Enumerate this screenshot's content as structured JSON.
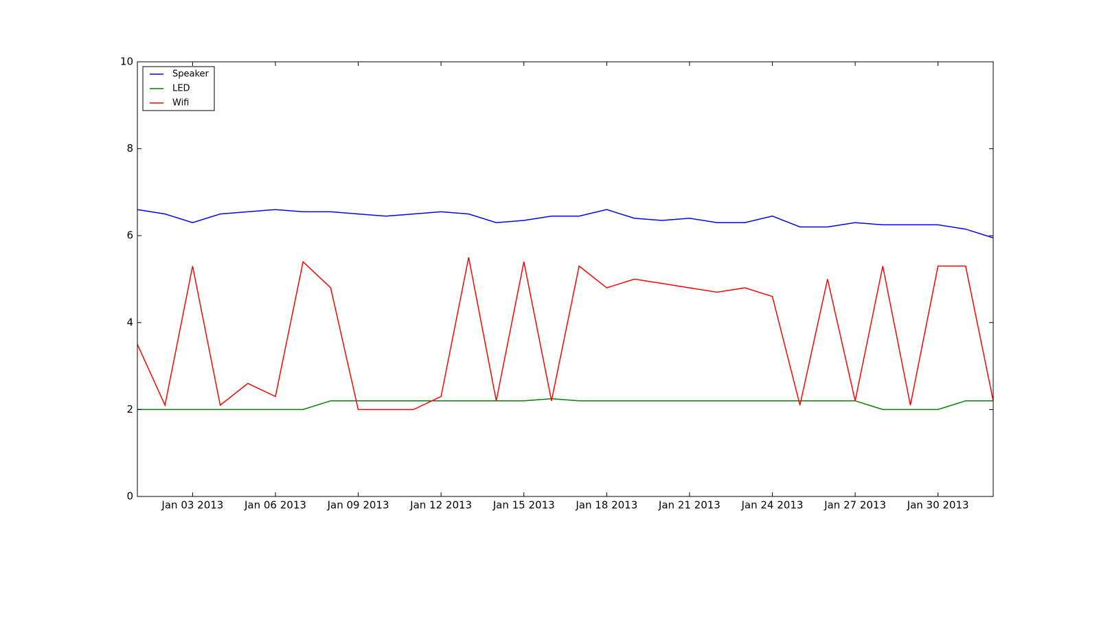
{
  "chart_data": {
    "type": "line",
    "x": [
      "2013-01-01",
      "2013-01-02",
      "2013-01-03",
      "2013-01-04",
      "2013-01-05",
      "2013-01-06",
      "2013-01-07",
      "2013-01-08",
      "2013-01-09",
      "2013-01-10",
      "2013-01-11",
      "2013-01-12",
      "2013-01-13",
      "2013-01-14",
      "2013-01-15",
      "2013-01-16",
      "2013-01-17",
      "2013-01-18",
      "2013-01-19",
      "2013-01-20",
      "2013-01-21",
      "2013-01-22",
      "2013-01-23",
      "2013-01-24",
      "2013-01-25",
      "2013-01-26",
      "2013-01-27",
      "2013-01-28",
      "2013-01-29",
      "2013-01-30",
      "2013-01-31",
      "2013-02-01"
    ],
    "series": [
      {
        "name": "Speaker",
        "color": "#0000ff",
        "values": [
          6.6,
          6.5,
          6.3,
          6.5,
          6.55,
          6.6,
          6.55,
          6.55,
          6.5,
          6.45,
          6.5,
          6.55,
          6.5,
          6.3,
          6.35,
          6.45,
          6.45,
          6.6,
          6.4,
          6.35,
          6.4,
          6.3,
          6.3,
          6.45,
          6.2,
          6.2,
          6.3,
          6.25,
          6.25,
          6.25,
          6.15,
          5.95
        ]
      },
      {
        "name": "LED",
        "color": "#008000",
        "values": [
          2.0,
          2.0,
          2.0,
          2.0,
          2.0,
          2.0,
          2.0,
          2.2,
          2.2,
          2.2,
          2.2,
          2.2,
          2.2,
          2.2,
          2.2,
          2.25,
          2.2,
          2.2,
          2.2,
          2.2,
          2.2,
          2.2,
          2.2,
          2.2,
          2.2,
          2.2,
          2.2,
          2.0,
          2.0,
          2.0,
          2.2,
          2.2
        ]
      },
      {
        "name": "Wifi",
        "color": "#ff0000",
        "values": [
          3.5,
          2.1,
          5.3,
          2.1,
          2.6,
          2.3,
          5.4,
          4.8,
          2.0,
          2.0,
          2.0,
          2.3,
          5.5,
          2.2,
          5.4,
          2.2,
          5.3,
          4.8,
          5.0,
          4.9,
          4.8,
          4.7,
          4.8,
          4.6,
          2.1,
          5.0,
          2.2,
          5.3,
          2.1,
          5.3,
          5.3,
          2.2
        ]
      }
    ],
    "xlim": [
      "2013-01-01",
      "2013-02-01"
    ],
    "xticks": [
      {
        "value": "2013-01-03",
        "label": "Jan 03 2013"
      },
      {
        "value": "2013-01-06",
        "label": "Jan 06 2013"
      },
      {
        "value": "2013-01-09",
        "label": "Jan 09 2013"
      },
      {
        "value": "2013-01-12",
        "label": "Jan 12 2013"
      },
      {
        "value": "2013-01-15",
        "label": "Jan 15 2013"
      },
      {
        "value": "2013-01-18",
        "label": "Jan 18 2013"
      },
      {
        "value": "2013-01-21",
        "label": "Jan 21 2013"
      },
      {
        "value": "2013-01-24",
        "label": "Jan 24 2013"
      },
      {
        "value": "2013-01-27",
        "label": "Jan 27 2013"
      },
      {
        "value": "2013-01-30",
        "label": "Jan 30 2013"
      }
    ],
    "ylim": [
      0,
      10
    ],
    "yticks": [
      0,
      2,
      4,
      6,
      8,
      10
    ],
    "grid": false,
    "legend": "upper-left"
  }
}
